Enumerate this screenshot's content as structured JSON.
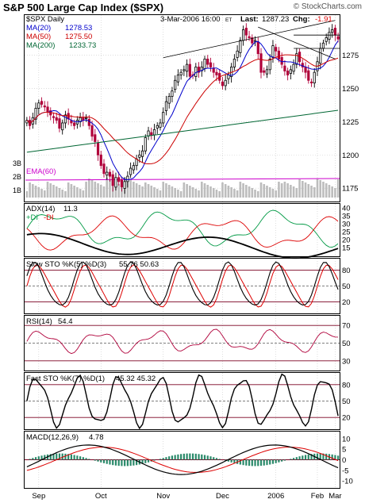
{
  "header": {
    "title": "S&P 500 Large Cap Index ($SPX)",
    "watermark": "© StockCharts.com",
    "symbol_period": "$SPX Daily",
    "datetime": "3-Mar-2006 16:00",
    "tz": "ET",
    "last_label": "Last:",
    "last_value": "1287.23",
    "chg_label": "Chg:",
    "chg_value": "-1.91"
  },
  "colors": {
    "ma20": "#0000cc",
    "ma50": "#cc0000",
    "ma200": "#006633",
    "ema60": "#cc00cc",
    "up": "#000000",
    "down": "#b0003a",
    "red": "#dd0000",
    "green": "#009944",
    "grid": "#c8c8c8"
  },
  "chart_data": [
    {
      "type": "candlestick",
      "panel": "price",
      "legend": [
        {
          "label": "MA(20)",
          "value": "1278.53",
          "color": "#0000cc"
        },
        {
          "label": "MA(50)",
          "value": "1275.50",
          "color": "#cc0000"
        },
        {
          "label": "MA(200)",
          "value": "1233.73",
          "color": "#006633"
        }
      ],
      "y_ticks": [
        "1275",
        "1250",
        "1225",
        "1200",
        "1175"
      ],
      "ylim": [
        1165,
        1305
      ],
      "close_approx": [
        1226,
        1222,
        1228,
        1235,
        1239,
        1238,
        1236,
        1232,
        1230,
        1228,
        1226,
        1220,
        1224,
        1230,
        1227,
        1224,
        1222,
        1226,
        1228,
        1226,
        1228,
        1222,
        1214,
        1210,
        1200,
        1192,
        1186,
        1187,
        1184,
        1177,
        1183,
        1180,
        1176,
        1180,
        1184,
        1190,
        1192,
        1197,
        1200,
        1203,
        1213,
        1218,
        1215,
        1219,
        1222,
        1224,
        1232,
        1240,
        1244,
        1248,
        1256,
        1260,
        1262,
        1264,
        1268,
        1259,
        1260,
        1266,
        1262,
        1266,
        1272,
        1268,
        1266,
        1262,
        1260,
        1256,
        1252,
        1256,
        1260,
        1266,
        1272,
        1278,
        1286,
        1294,
        1290,
        1288,
        1284,
        1286,
        1276,
        1262,
        1262,
        1264,
        1272,
        1282,
        1278,
        1272,
        1268,
        1263,
        1260,
        1264,
        1268,
        1276,
        1270,
        1266,
        1262,
        1256,
        1254,
        1262,
        1270,
        1280,
        1284,
        1288,
        1292,
        1294,
        1290,
        1287
      ],
      "volume_axis": [
        "3B",
        "2B",
        "1B"
      ],
      "volume_legend": {
        "label": "EMA(60)",
        "color": "#cc00cc"
      },
      "x_ticks": [
        "Sep",
        "Oct",
        "Nov",
        "Dec",
        "2006",
        "Feb",
        "Mar"
      ]
    },
    {
      "type": "line",
      "panel": "ADX",
      "legend": [
        {
          "label": "ADX(14)",
          "value": "11.3",
          "color": "#000000"
        },
        {
          "label": "+DI",
          "value": "",
          "color": "#009944"
        },
        {
          "label": "-DI",
          "value": "",
          "color": "#dd0000"
        }
      ],
      "y_ticks": [
        "40",
        "35",
        "30",
        "25",
        "20",
        "15"
      ],
      "ylim": [
        10,
        42
      ]
    },
    {
      "type": "line",
      "panel": "Slow STO",
      "legend": [
        {
          "label": "Slow STO %K(5) %D(3)",
          "value": "55.76  50.63",
          "color": "#000000"
        }
      ],
      "y_ticks": [
        "80",
        "50",
        "20"
      ],
      "ylim": [
        0,
        100
      ]
    },
    {
      "type": "line",
      "panel": "RSI",
      "legend": [
        {
          "label": "RSI(14)",
          "value": "54.4",
          "color": "#000000"
        }
      ],
      "y_ticks": [
        "70",
        "50",
        "30"
      ],
      "ylim": [
        20,
        80
      ]
    },
    {
      "type": "line",
      "panel": "Fast STO",
      "legend": [
        {
          "label": "Fast STO %K(7) %D(1)",
          "value": "45.32  45.32",
          "color": "#000000"
        }
      ],
      "y_ticks": [
        "80",
        "50",
        "20"
      ],
      "ylim": [
        0,
        100
      ]
    },
    {
      "type": "line",
      "panel": "MACD",
      "legend": [
        {
          "label": "MACD(12,26,9)",
          "value": "4.78",
          "color": "#000000"
        }
      ],
      "y_ticks": [
        "10",
        "5",
        "0",
        "-5",
        "-10"
      ],
      "ylim": [
        -13,
        13
      ]
    }
  ]
}
